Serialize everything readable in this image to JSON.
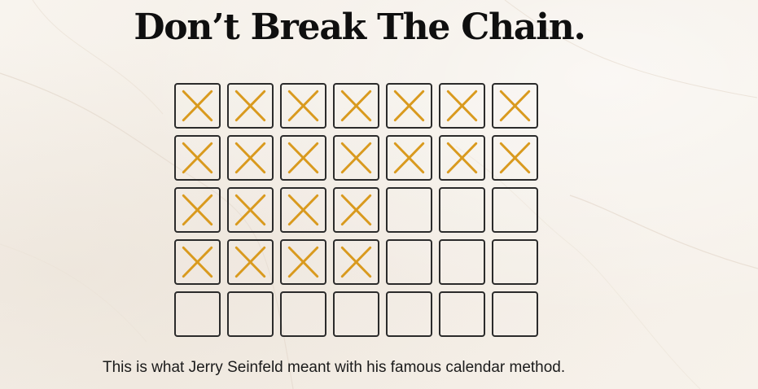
{
  "title": "Don’t Break The Chain.",
  "caption": "This is what Jerry Seinfeld meant with his famous calendar method.",
  "calendar": {
    "columns": 7,
    "rows": 5,
    "completed": [
      [
        true,
        true,
        true,
        true,
        true,
        true,
        true
      ],
      [
        true,
        true,
        true,
        true,
        true,
        true,
        true
      ],
      [
        true,
        true,
        true,
        true,
        false,
        false,
        false
      ],
      [
        true,
        true,
        true,
        true,
        false,
        false,
        false
      ],
      [
        false,
        false,
        false,
        false,
        false,
        false,
        false
      ]
    ]
  },
  "colors": {
    "mark": "#d99a1e",
    "border": "#2b2b2b",
    "text": "#0f0f0f"
  },
  "icons": {
    "mark": "x-mark-icon"
  }
}
